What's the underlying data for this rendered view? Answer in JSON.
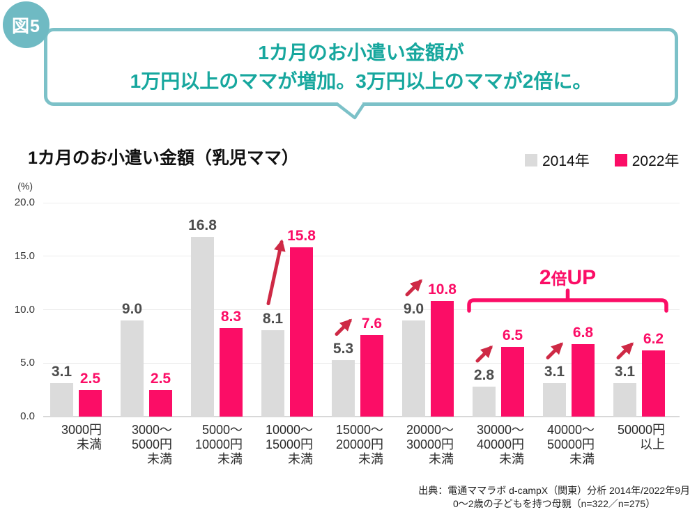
{
  "figure_badge": "図5",
  "headline": {
    "line1": "1カ月のお小遣い金額が",
    "line2": "1万円以上のママが増加。3万円以上のママが2倍に。"
  },
  "colors": {
    "teal_border": "#7CC1C8",
    "teal_text": "#17A79E",
    "badge_bg": "#6FBAC3",
    "pink": "#FB0D66",
    "gray_bar": "#DBDBDB",
    "arrow": "#CE2945",
    "dark_label": "#4D4D4D",
    "grid": "#ECECEC",
    "baseline": "#D8D8D8"
  },
  "chart_data": {
    "type": "bar",
    "title": "1カ月のお小遣い金額（乳児ママ）",
    "unit_label": "(%)",
    "ylim": [
      0,
      20
    ],
    "yticks": [
      20.0,
      15.0,
      10.0,
      5.0,
      0.0
    ],
    "grid": true,
    "legend_position": "top-right",
    "categories": [
      {
        "lines": [
          "3000円",
          "未満"
        ]
      },
      {
        "lines": [
          "3000～",
          "5000円",
          "未満"
        ]
      },
      {
        "lines": [
          "5000～",
          "10000円",
          "未満"
        ]
      },
      {
        "lines": [
          "10000～",
          "15000円",
          "未満"
        ]
      },
      {
        "lines": [
          "15000～",
          "20000円",
          "未満"
        ]
      },
      {
        "lines": [
          "20000～",
          "30000円",
          "未満"
        ]
      },
      {
        "lines": [
          "30000～",
          "40000円",
          "未満"
        ]
      },
      {
        "lines": [
          "40000～",
          "50000円",
          "未満"
        ]
      },
      {
        "lines": [
          "50000円",
          "以上"
        ]
      }
    ],
    "series": [
      {
        "name": "2014年",
        "color": "#DBDBDB",
        "values": [
          3.1,
          9.0,
          16.8,
          8.1,
          5.3,
          9.0,
          2.8,
          3.1,
          3.1
        ]
      },
      {
        "name": "2022年",
        "color": "#FB0D66",
        "values": [
          2.5,
          2.5,
          8.3,
          15.8,
          7.6,
          10.8,
          6.5,
          6.8,
          6.2
        ]
      }
    ],
    "annotations": {
      "arrows": [
        {
          "category_index": 3,
          "style": "vertical"
        },
        {
          "category_index": 4,
          "style": "diagonal"
        },
        {
          "category_index": 5,
          "style": "diagonal"
        },
        {
          "category_index": 6,
          "style": "diagonal"
        },
        {
          "category_index": 7,
          "style": "diagonal"
        },
        {
          "category_index": 8,
          "style": "diagonal"
        }
      ],
      "bracket": {
        "label": "2倍UP",
        "from_category_index": 6,
        "to_category_index": 8
      }
    }
  },
  "source": {
    "line1": "出典：電通ママラボ d-campX（関東）分析 2014年/2022年9月",
    "line2": "0～2歳の子どもを持つ母親（n=322／n=275）"
  }
}
